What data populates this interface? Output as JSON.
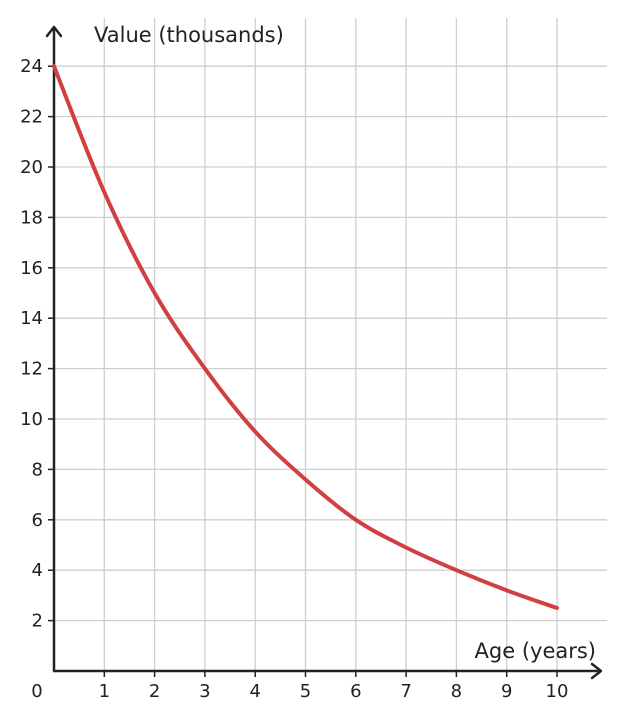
{
  "chart_data": {
    "type": "line",
    "xlabel": "Age (years)",
    "ylabel": "Value (thousands)",
    "origin_label": "0",
    "xlim": [
      0,
      11
    ],
    "ylim": [
      0,
      24
    ],
    "x_ticks": [
      "1",
      "2",
      "3",
      "4",
      "5",
      "6",
      "7",
      "8",
      "9",
      "10"
    ],
    "y_ticks": [
      "2",
      "4",
      "6",
      "8",
      "10",
      "12",
      "14",
      "16",
      "18",
      "20",
      "22",
      "24"
    ],
    "grid": true,
    "series": [
      {
        "color": "#d14040",
        "x": [
          0,
          1,
          2,
          3,
          4,
          5,
          6,
          7,
          8,
          9,
          10
        ],
        "y": [
          24,
          19,
          15,
          12,
          9.5,
          7.6,
          6.0,
          4.9,
          4.0,
          3.2,
          2.5
        ]
      }
    ]
  }
}
